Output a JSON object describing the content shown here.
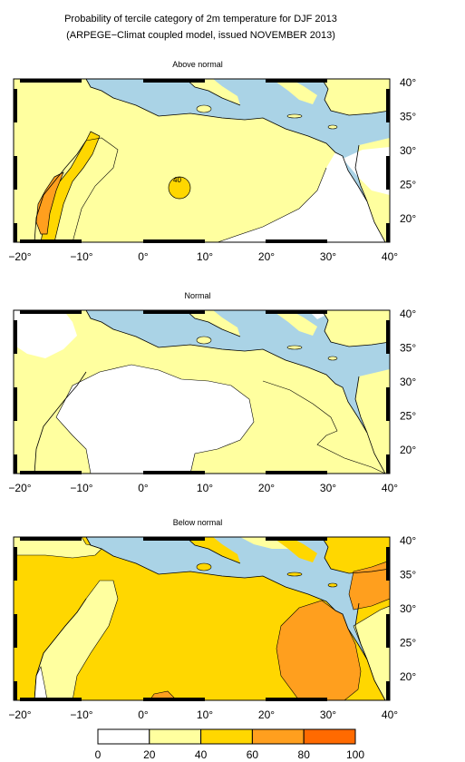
{
  "header": {
    "title_line1": "Probability of tercile category of 2m temperature for DJF 2013",
    "title_line2": "(ARPEGE−Climat coupled model, issued NOVEMBER 2013)"
  },
  "axes": {
    "lon_ticks": [
      "−20°",
      "−10°",
      "0°",
      "10°",
      "20°",
      "30°",
      "40°"
    ],
    "lat_ticks": [
      "40°",
      "35°",
      "30°",
      "25°",
      "20°"
    ]
  },
  "panels": [
    {
      "id": "above",
      "title": "Above normal",
      "annotation": "40"
    },
    {
      "id": "normal",
      "title": "Normal"
    },
    {
      "id": "below",
      "title": "Below normal"
    }
  ],
  "legend": {
    "labels": [
      "0",
      "20",
      "40",
      "60",
      "80",
      "100"
    ],
    "bins": [
      {
        "range": [
          0,
          20
        ],
        "color": "#ffffff"
      },
      {
        "range": [
          20,
          40
        ],
        "color": "#ffff9f"
      },
      {
        "range": [
          40,
          60
        ],
        "color": "#ffd700"
      },
      {
        "range": [
          60,
          80
        ],
        "color": "#ff9f1e"
      },
      {
        "range": [
          80,
          100
        ],
        "color": "#ff6a00"
      }
    ]
  },
  "colors": {
    "sea": "#aad3e6",
    "white": "#ffffff",
    "light_yellow": "#ffff9f",
    "yellow": "#ffd700",
    "orange": "#ff9f1e",
    "dark_orange": "#ff6a00"
  }
}
